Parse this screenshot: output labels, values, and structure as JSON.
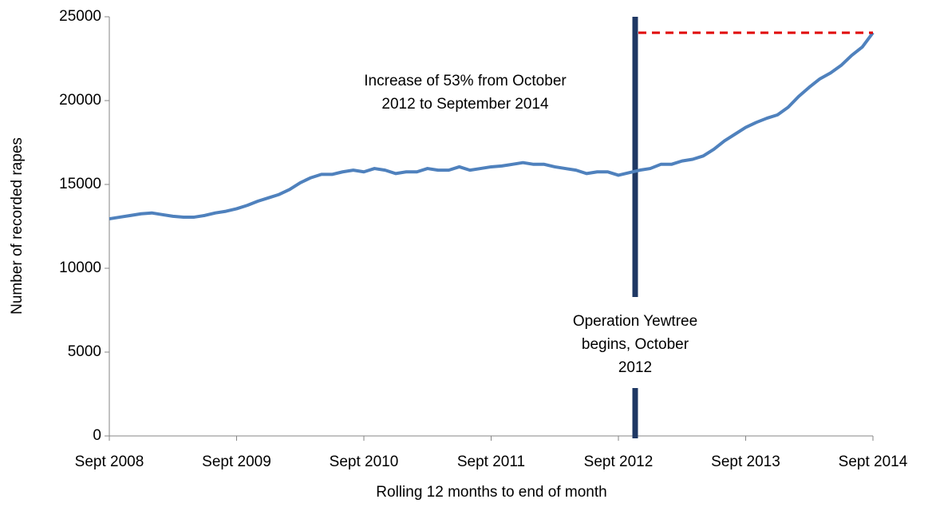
{
  "chart_data": {
    "type": "line",
    "y_label": "Number of recorded rapes",
    "x_label": "Rolling 12 months to end of month",
    "categories": [
      "Sept 2008",
      null,
      null,
      null,
      null,
      null,
      null,
      null,
      null,
      null,
      null,
      null,
      "Sept 2009",
      null,
      null,
      null,
      null,
      null,
      null,
      null,
      null,
      null,
      null,
      null,
      "Sept 2010",
      null,
      null,
      null,
      null,
      null,
      null,
      null,
      null,
      null,
      null,
      null,
      "Sept 2011",
      null,
      null,
      null,
      null,
      null,
      null,
      null,
      null,
      null,
      null,
      null,
      "Sept 2012",
      null,
      null,
      null,
      null,
      null,
      null,
      null,
      null,
      null,
      null,
      null,
      "Sept 2013",
      null,
      null,
      null,
      null,
      null,
      null,
      null,
      null,
      null,
      null,
      null,
      "Sept 2014"
    ],
    "series": [
      {
        "name": "Recorded rapes",
        "color": "#4f81bd",
        "values": [
          12950,
          13050,
          13150,
          13250,
          13300,
          13200,
          13100,
          13050,
          13050,
          13150,
          13300,
          13400,
          13550,
          13750,
          14000,
          14200,
          14400,
          14700,
          15100,
          15400,
          15600,
          15600,
          15750,
          15850,
          15750,
          15950,
          15850,
          15650,
          15750,
          15750,
          15950,
          15850,
          15850,
          16050,
          15850,
          15950,
          16050,
          16100,
          16200,
          16300,
          16200,
          16200,
          16050,
          15950,
          15850,
          15650,
          15750,
          15750,
          15550,
          15700,
          15850,
          15950,
          16200,
          16200,
          16400,
          16500,
          16700,
          17100,
          17600,
          18000,
          18400,
          18700,
          18950,
          19150,
          19600,
          20250,
          20800,
          21300,
          21650,
          22100,
          22700,
          23200,
          24050
        ]
      }
    ],
    "ylim": [
      0,
      25000
    ],
    "yticks": [
      0,
      5000,
      10000,
      15000,
      20000,
      25000
    ],
    "grid": false,
    "annotations": [
      {
        "lines": [
          "Increase of 53% from October",
          "2012 to September 2014"
        ]
      },
      {
        "lines": [
          "Operation Yewtree",
          "begins, October",
          "2012"
        ]
      }
    ]
  }
}
